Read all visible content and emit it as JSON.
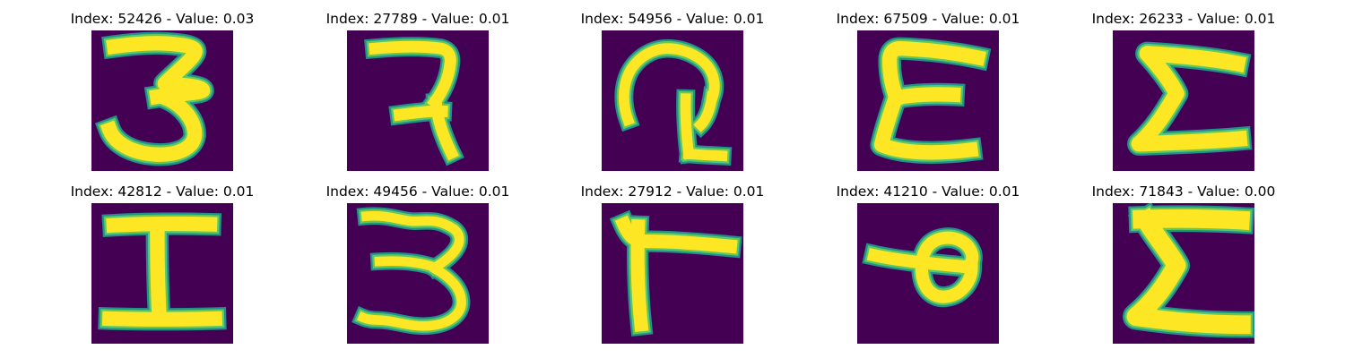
{
  "colors": {
    "background": "#440154",
    "stroke_edge": "#21918c",
    "stroke_mid": "#5ec962",
    "stroke_core": "#fde725"
  },
  "panels": [
    {
      "index": "52426",
      "value": "0.03",
      "glyph": "three"
    },
    {
      "index": "27789",
      "value": "0.01",
      "glyph": "reversed-r"
    },
    {
      "index": "54956",
      "value": "0.01",
      "glyph": "curl"
    },
    {
      "index": "67509",
      "value": "0.01",
      "glyph": "epsilon"
    },
    {
      "index": "26233",
      "value": "0.01",
      "glyph": "sigma"
    },
    {
      "index": "42812",
      "value": "0.01",
      "glyph": "capital-i"
    },
    {
      "index": "49456",
      "value": "0.01",
      "glyph": "three-wavy"
    },
    {
      "index": "27912",
      "value": "0.01",
      "glyph": "gamma"
    },
    {
      "index": "41210",
      "value": "0.01",
      "glyph": "loop"
    },
    {
      "index": "71843",
      "value": "0.00",
      "glyph": "sigma-bold"
    }
  ]
}
